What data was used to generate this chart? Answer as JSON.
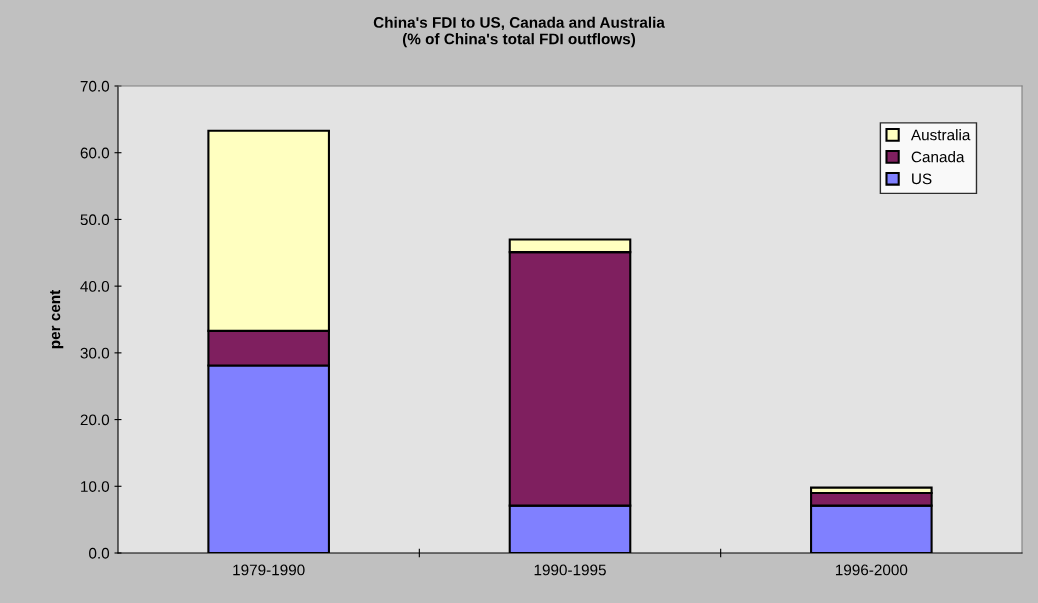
{
  "chart_data": {
    "type": "bar",
    "title": "China's FDI to US, Canada and Australia\n(% of China's total FDI outflows)",
    "ylabel": "per cent",
    "categories": [
      "1979-1990",
      "1990-1995",
      "1996-2000"
    ],
    "stacked": true,
    "series": [
      {
        "name": "US",
        "color": "#8080ff",
        "values": [
          28.1,
          7.1,
          7.1
        ]
      },
      {
        "name": "Canada",
        "color": "#7f1f5f",
        "values": [
          5.2,
          38.0,
          1.9
        ]
      },
      {
        "name": "Australia",
        "color": "#ffffc0",
        "values": [
          30.0,
          1.9,
          0.8
        ]
      }
    ],
    "ylim": [
      0,
      70
    ],
    "yticks": [
      {
        "value": 0,
        "label": "0.0"
      },
      {
        "value": 10,
        "label": "10.0"
      },
      {
        "value": 20,
        "label": "20.0"
      },
      {
        "value": 30,
        "label": "30.0"
      },
      {
        "value": 40,
        "label": "40.0"
      },
      {
        "value": 50,
        "label": "50.0"
      },
      {
        "value": 60,
        "label": "60.0"
      },
      {
        "value": 70,
        "label": "70.0"
      }
    ],
    "grid": false,
    "legend": "top right"
  }
}
